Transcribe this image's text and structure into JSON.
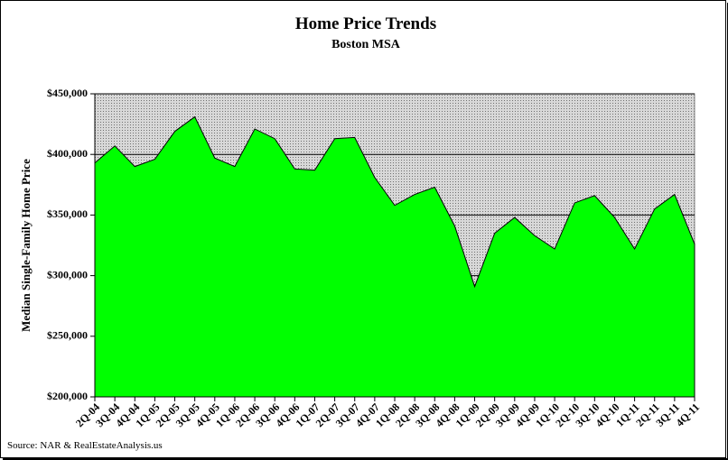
{
  "chart_data": {
    "type": "area",
    "title": "Home Price Trends",
    "subtitle": "Boston MSA",
    "y_label": "Median Single-Family Home Price",
    "source": "Source: NAR & RealEstateAnalysis.us",
    "categories": [
      "2Q-04",
      "3Q-04",
      "4Q-04",
      "1Q-05",
      "2Q-05",
      "3Q-05",
      "4Q-05",
      "1Q-06",
      "2Q-06",
      "3Q-06",
      "4Q-06",
      "1Q-07",
      "2Q-07",
      "3Q-07",
      "4Q-07",
      "1Q-08",
      "2Q-08",
      "3Q-08",
      "4Q-08",
      "1Q-09",
      "2Q-09",
      "3Q-09",
      "4Q-09",
      "1Q-10",
      "2Q-10",
      "3Q-10",
      "4Q-10",
      "1Q-11",
      "2Q-11",
      "3Q-11",
      "4Q-11"
    ],
    "values": [
      393000,
      407000,
      390000,
      396000,
      419000,
      431000,
      397000,
      390000,
      421000,
      413000,
      388000,
      387000,
      413000,
      414000,
      381000,
      358000,
      367000,
      373000,
      341000,
      291000,
      335000,
      348000,
      333000,
      322000,
      360000,
      366000,
      348000,
      322000,
      355000,
      367000,
      326000
    ],
    "color": "#00ff00",
    "ylim": [
      200000,
      450000
    ],
    "yticks": [
      {
        "value": 200000,
        "label": "$200,000"
      },
      {
        "value": 250000,
        "label": "$250,000"
      },
      {
        "value": 300000,
        "label": "$300,000"
      },
      {
        "value": 350000,
        "label": "$350,000"
      },
      {
        "value": 400000,
        "label": "$400,000"
      },
      {
        "value": 450000,
        "label": "$450,000"
      }
    ],
    "grid": true
  }
}
